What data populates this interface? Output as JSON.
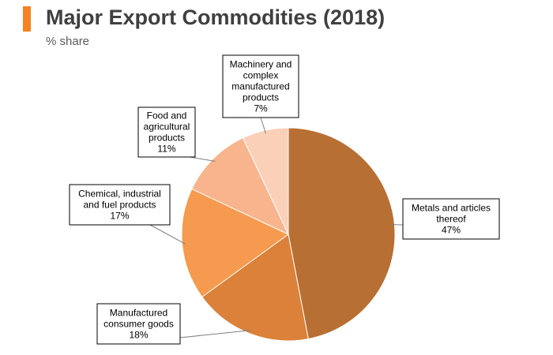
{
  "header": {
    "title": "Major Export Commodities (2018)",
    "subtitle": "% share",
    "accent_color": "#f58220"
  },
  "chart_data": {
    "type": "pie",
    "title": "Major Export Commodities (2018)",
    "subtitle": "% share",
    "start": "12 o'clock",
    "direction": "clockwise",
    "slices": [
      {
        "label": [
          "Metals and articles",
          "thereof"
        ],
        "value": 47,
        "value_label": "47%",
        "color": "#b86f33"
      },
      {
        "label": [
          "Manufactured",
          "consumer goods"
        ],
        "value": 18,
        "value_label": "18%",
        "color": "#db8139"
      },
      {
        "label": [
          "Chemical, industrial",
          "and fuel products"
        ],
        "value": 17,
        "value_label": "17%",
        "color": "#f59a4e"
      },
      {
        "label": [
          "Food and",
          "agricultural",
          "products"
        ],
        "value": 11,
        "value_label": "11%",
        "color": "#f7b48d"
      },
      {
        "label": [
          "Machinery and",
          "complex",
          "manufactured",
          "products"
        ],
        "value": 7,
        "value_label": "7%",
        "color": "#fbd0b9"
      }
    ]
  }
}
